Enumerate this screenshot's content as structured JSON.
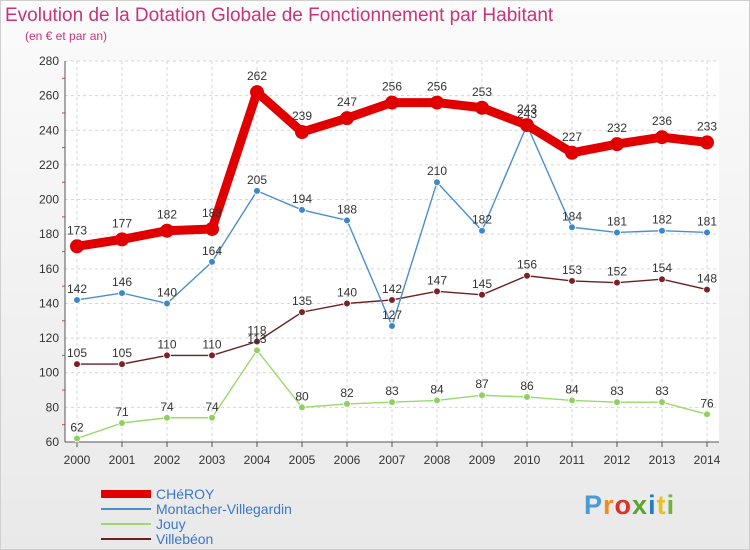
{
  "title": "Evolution de la Dotation Globale de Fonctionnement par Habitant",
  "subtitle": "(en € et par an)",
  "brand": {
    "text": "Proxiti",
    "colors": [
      "#4a9ad8",
      "#f18a1f",
      "#d8342c",
      "#5aa52e",
      "#1f7ec4",
      "#e8c21c",
      "#6fb33b"
    ]
  },
  "chart_data": {
    "type": "line",
    "title": "Evolution de la Dotation Globale de Fonctionnement par Habitant",
    "subtitle": "(en € et par an)",
    "xlabel": "",
    "ylabel": "",
    "ylim": [
      60,
      280
    ],
    "yticks": [
      60,
      80,
      100,
      120,
      140,
      160,
      180,
      200,
      220,
      240,
      260,
      280
    ],
    "categories": [
      "2000",
      "2001",
      "2002",
      "2003",
      "2004",
      "2005",
      "2006",
      "2007",
      "2008",
      "2009",
      "2010",
      "2011",
      "2012",
      "2013",
      "2014"
    ],
    "grid": true,
    "legend_position": "bottom-left",
    "series": [
      {
        "name": "CHéROY",
        "color": "#e00000",
        "emphasis": true,
        "values": [
          173,
          177,
          182,
          183,
          262,
          239,
          247,
          256,
          256,
          253,
          243,
          227,
          232,
          236,
          233
        ]
      },
      {
        "name": "Montacher-Villegardin",
        "color": "#4a8fcc",
        "marker": "#3f86c9",
        "values": [
          142,
          146,
          140,
          164,
          205,
          194,
          188,
          127,
          210,
          182,
          243,
          184,
          181,
          182,
          181
        ]
      },
      {
        "name": "Jouy",
        "color": "#9bd96a",
        "marker": "#8fd15e",
        "values": [
          62,
          71,
          74,
          74,
          113,
          80,
          82,
          83,
          84,
          87,
          86,
          84,
          83,
          83,
          76
        ]
      },
      {
        "name": "Villebéon",
        "color": "#6b1f22",
        "marker": "#7a2226",
        "values": [
          105,
          105,
          110,
          110,
          118,
          135,
          140,
          142,
          147,
          145,
          156,
          153,
          152,
          154,
          148
        ]
      }
    ]
  }
}
